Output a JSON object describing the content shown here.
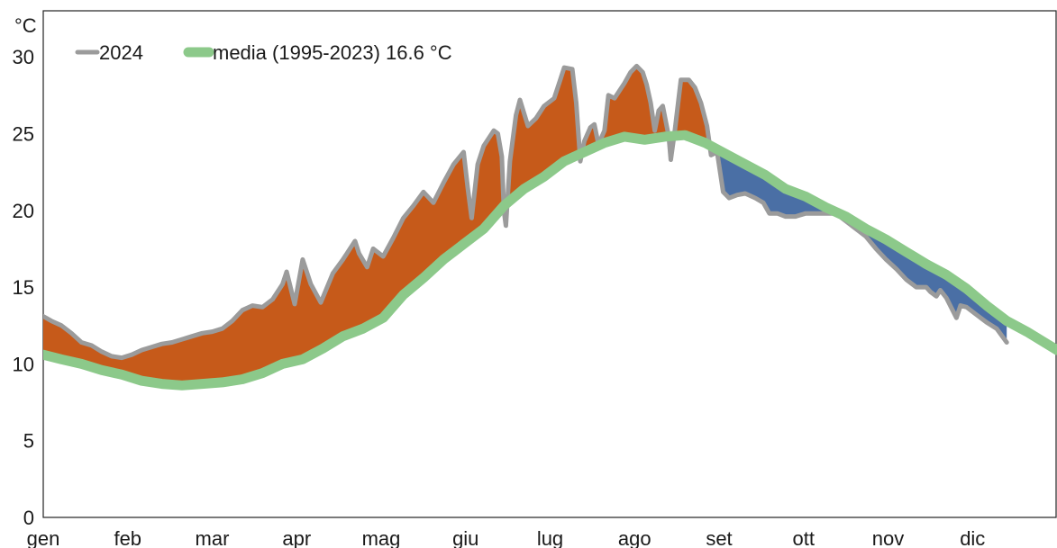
{
  "chart_data": {
    "type": "area",
    "y_unit": "°C",
    "ylim": [
      0,
      33
    ],
    "yticks": [
      0,
      5,
      10,
      15,
      20,
      25,
      30
    ],
    "month_labels": [
      "gen",
      "feb",
      "mar",
      "apr",
      "mag",
      "giu",
      "lug",
      "ago",
      "set",
      "ott",
      "nov",
      "dic"
    ],
    "grid": false,
    "legend_position": "top-left",
    "series": [
      {
        "name": "2024",
        "color": "#9b9b9b",
        "points": [
          [
            1,
            13.1
          ],
          [
            5,
            12.8
          ],
          [
            10,
            12.5
          ],
          [
            15,
            12.0
          ],
          [
            20,
            11.4
          ],
          [
            25,
            11.2
          ],
          [
            30,
            10.8
          ],
          [
            35,
            10.5
          ],
          [
            40,
            10.4
          ],
          [
            45,
            10.6
          ],
          [
            50,
            10.9
          ],
          [
            55,
            11.1
          ],
          [
            60,
            11.3
          ],
          [
            65,
            11.4
          ],
          [
            70,
            11.6
          ],
          [
            75,
            11.8
          ],
          [
            80,
            12.0
          ],
          [
            85,
            12.1
          ],
          [
            90,
            12.3
          ],
          [
            95,
            12.8
          ],
          [
            100,
            13.5
          ],
          [
            105,
            13.8
          ],
          [
            110,
            13.7
          ],
          [
            115,
            14.2
          ],
          [
            120,
            15.2
          ],
          [
            122,
            16.0
          ],
          [
            126,
            13.9
          ],
          [
            130,
            16.8
          ],
          [
            134,
            15.2
          ],
          [
            139,
            14.0
          ],
          [
            145,
            15.9
          ],
          [
            150,
            16.8
          ],
          [
            154,
            17.6
          ],
          [
            156,
            18.0
          ],
          [
            158,
            17.2
          ],
          [
            162,
            16.3
          ],
          [
            165,
            17.5
          ],
          [
            170,
            17.0
          ],
          [
            175,
            18.2
          ],
          [
            180,
            19.5
          ],
          [
            185,
            20.3
          ],
          [
            190,
            21.2
          ],
          [
            195,
            20.5
          ],
          [
            200,
            21.8
          ],
          [
            205,
            23.0
          ],
          [
            210,
            23.8
          ],
          [
            212,
            21.5
          ],
          [
            214,
            19.5
          ],
          [
            217,
            23.0
          ],
          [
            220,
            24.2
          ],
          [
            225,
            25.2
          ],
          [
            227,
            25.0
          ],
          [
            229,
            23.5
          ],
          [
            230,
            20.0
          ],
          [
            231,
            19.0
          ],
          [
            233,
            23.2
          ],
          [
            236,
            26.2
          ],
          [
            238,
            27.2
          ],
          [
            242,
            25.5
          ],
          [
            246,
            26.0
          ],
          [
            250,
            26.8
          ],
          [
            255,
            27.3
          ],
          [
            258,
            28.5
          ],
          [
            260,
            29.3
          ],
          [
            264,
            29.2
          ],
          [
            266,
            27.0
          ],
          [
            268,
            23.2
          ],
          [
            270,
            24.5
          ],
          [
            273,
            25.4
          ],
          [
            275,
            25.6
          ],
          [
            277,
            24.3
          ],
          [
            280,
            25.2
          ],
          [
            282,
            27.5
          ],
          [
            285,
            27.3
          ],
          [
            290,
            28.3
          ],
          [
            293,
            29.0
          ],
          [
            296,
            29.4
          ],
          [
            299,
            29.0
          ],
          [
            301,
            28.2
          ],
          [
            303,
            27.0
          ],
          [
            305,
            25.2
          ],
          [
            307,
            26.5
          ],
          [
            309,
            26.8
          ],
          [
            312,
            24.8
          ],
          [
            313,
            23.3
          ],
          [
            315,
            25.2
          ],
          [
            318,
            28.5
          ],
          [
            322,
            28.5
          ],
          [
            325,
            28.0
          ],
          [
            328,
            27.0
          ],
          [
            331,
            25.5
          ],
          [
            333,
            23.6
          ],
          [
            336,
            23.8
          ],
          [
            339,
            21.2
          ],
          [
            342,
            20.8
          ],
          [
            346,
            21.0
          ],
          [
            350,
            21.1
          ],
          [
            355,
            20.8
          ],
          [
            359,
            20.5
          ],
          [
            362,
            19.8
          ],
          [
            366,
            19.8
          ],
          [
            370,
            19.6
          ],
          [
            375,
            19.6
          ],
          [
            380,
            19.8
          ],
          [
            385,
            19.8
          ],
          [
            390,
            19.8
          ],
          [
            395,
            19.8
          ],
          [
            400,
            19.3
          ],
          [
            405,
            18.8
          ],
          [
            410,
            18.3
          ],
          [
            415,
            17.5
          ],
          [
            420,
            16.8
          ],
          [
            425,
            16.2
          ],
          [
            430,
            15.5
          ],
          [
            435,
            15.0
          ],
          [
            440,
            15.0
          ],
          [
            442,
            14.7
          ],
          [
            445,
            14.4
          ],
          [
            447,
            14.8
          ],
          [
            450,
            14.3
          ],
          [
            455,
            13.0
          ],
          [
            457,
            13.8
          ],
          [
            460,
            13.7
          ],
          [
            465,
            13.2
          ],
          [
            470,
            12.7
          ],
          [
            475,
            12.3
          ],
          [
            480,
            11.4
          ]
        ]
      },
      {
        "name": "media (1995-2023) 16.6 °C",
        "color": "#8cc98a",
        "points": [
          [
            1,
            10.6
          ],
          [
            10,
            10.3
          ],
          [
            20,
            10.0
          ],
          [
            30,
            9.6
          ],
          [
            40,
            9.3
          ],
          [
            50,
            8.9
          ],
          [
            60,
            8.7
          ],
          [
            70,
            8.6
          ],
          [
            80,
            8.7
          ],
          [
            90,
            8.8
          ],
          [
            100,
            9.0
          ],
          [
            110,
            9.4
          ],
          [
            120,
            10.0
          ],
          [
            130,
            10.3
          ],
          [
            140,
            11.0
          ],
          [
            150,
            11.8
          ],
          [
            160,
            12.3
          ],
          [
            170,
            13.0
          ],
          [
            180,
            14.5
          ],
          [
            190,
            15.6
          ],
          [
            200,
            16.8
          ],
          [
            210,
            17.8
          ],
          [
            220,
            18.8
          ],
          [
            230,
            20.3
          ],
          [
            240,
            21.4
          ],
          [
            250,
            22.2
          ],
          [
            260,
            23.2
          ],
          [
            270,
            23.8
          ],
          [
            280,
            24.4
          ],
          [
            290,
            24.8
          ],
          [
            300,
            24.6
          ],
          [
            310,
            24.8
          ],
          [
            320,
            24.9
          ],
          [
            330,
            24.4
          ],
          [
            340,
            23.7
          ],
          [
            350,
            23.0
          ],
          [
            360,
            22.3
          ],
          [
            370,
            21.4
          ],
          [
            380,
            20.9
          ],
          [
            390,
            20.2
          ],
          [
            400,
            19.6
          ],
          [
            410,
            18.8
          ],
          [
            420,
            18.1
          ],
          [
            430,
            17.3
          ],
          [
            440,
            16.5
          ],
          [
            450,
            15.8
          ],
          [
            460,
            14.9
          ],
          [
            470,
            13.8
          ],
          [
            480,
            12.8
          ],
          [
            490,
            12.1
          ],
          [
            500,
            11.3
          ],
          [
            505,
            10.9
          ]
        ]
      }
    ]
  },
  "legend": [
    {
      "label": "2024",
      "color": "#9b9b9b"
    },
    {
      "label": "media (1995-2023) 16.6 °C",
      "color": "#8cc98a"
    }
  ],
  "fill_colors": {
    "above": "#c65a1a",
    "below": "#4a6fa5"
  }
}
